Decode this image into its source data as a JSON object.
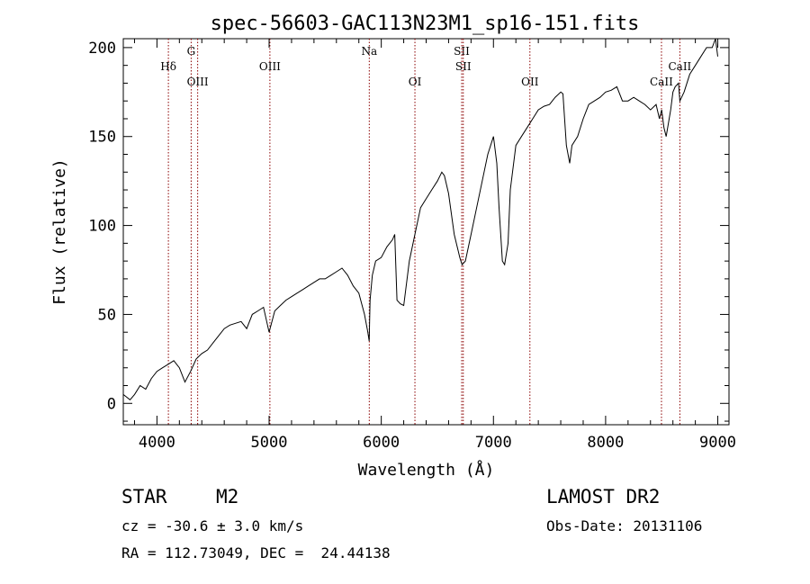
{
  "chart_data": {
    "type": "line",
    "title": "spec-56603-GAC113N23M1_sp16-151.fits",
    "xlabel": "Wavelength (Å)",
    "ylabel": "Flux (relative)",
    "xlim": [
      3700,
      9100
    ],
    "ylim": [
      -12,
      205
    ],
    "x_ticks": [
      4000,
      5000,
      6000,
      7000,
      8000,
      9000
    ],
    "x_tick_labels": [
      "4000",
      "5000",
      "6000",
      "7000",
      "8000",
      "9000"
    ],
    "y_ticks": [
      0,
      50,
      100,
      150,
      200
    ],
    "y_tick_labels": [
      "0",
      "50",
      "100",
      "150",
      "200"
    ],
    "series": [
      {
        "color": "#000000",
        "x": [
          3700,
          3760,
          3800,
          3850,
          3900,
          3950,
          4000,
          4050,
          4100,
          4150,
          4200,
          4250,
          4300,
          4350,
          4400,
          4450,
          4500,
          4550,
          4600,
          4650,
          4700,
          4750,
          4800,
          4850,
          4900,
          4950,
          5000,
          5050,
          5100,
          5150,
          5200,
          5250,
          5300,
          5350,
          5400,
          5450,
          5500,
          5550,
          5600,
          5650,
          5700,
          5750,
          5800,
          5850,
          5880,
          5892,
          5900,
          5920,
          5950,
          6000,
          6050,
          6100,
          6120,
          6140,
          6170,
          6200,
          6250,
          6300,
          6350,
          6400,
          6450,
          6500,
          6540,
          6563,
          6600,
          6650,
          6700,
          6720,
          6750,
          6800,
          6850,
          6900,
          6950,
          7000,
          7030,
          7050,
          7080,
          7100,
          7130,
          7150,
          7200,
          7250,
          7300,
          7350,
          7400,
          7450,
          7500,
          7550,
          7600,
          7620,
          7650,
          7680,
          7700,
          7750,
          7800,
          7850,
          7900,
          7950,
          8000,
          8050,
          8100,
          8150,
          8200,
          8250,
          8300,
          8350,
          8400,
          8450,
          8480,
          8500,
          8520,
          8540,
          8580,
          8600,
          8620,
          8650,
          8662,
          8700,
          8750,
          8800,
          8850,
          8900,
          8950,
          8980,
          9000
        ],
        "y": [
          5,
          2,
          5,
          10,
          8,
          14,
          18,
          20,
          22,
          24,
          20,
          12,
          18,
          25,
          28,
          30,
          34,
          38,
          42,
          44,
          45,
          46,
          42,
          50,
          52,
          54,
          40,
          52,
          55,
          58,
          60,
          62,
          64,
          66,
          68,
          70,
          70,
          72,
          74,
          76,
          72,
          66,
          62,
          50,
          40,
          35,
          58,
          72,
          80,
          82,
          88,
          92,
          95,
          58,
          56,
          55,
          80,
          95,
          110,
          115,
          120,
          125,
          130,
          128,
          118,
          95,
          82,
          78,
          80,
          95,
          110,
          125,
          140,
          150,
          135,
          110,
          80,
          78,
          90,
          120,
          145,
          150,
          155,
          160,
          165,
          167,
          168,
          172,
          175,
          174,
          145,
          135,
          145,
          150,
          160,
          168,
          170,
          172,
          175,
          176,
          178,
          170,
          170,
          172,
          170,
          168,
          165,
          168,
          160,
          165,
          155,
          150,
          165,
          175,
          178,
          180,
          170,
          175,
          185,
          190,
          195,
          200,
          200,
          205,
          195
        ]
      }
    ],
    "line_markers": [
      {
        "label": "Hδ",
        "x": 4102,
        "row": 1
      },
      {
        "label": "G",
        "x": 4305,
        "row": 0
      },
      {
        "label": "OIII",
        "x": 4363,
        "row": 2
      },
      {
        "label": "OIII",
        "x": 5007,
        "row": 1
      },
      {
        "label": "Na",
        "x": 5893,
        "row": 0
      },
      {
        "label": "OI",
        "x": 6300,
        "row": 2
      },
      {
        "label": "SII",
        "x": 6717,
        "row": 0
      },
      {
        "label": "SII",
        "x": 6731,
        "row": 1
      },
      {
        "label": "OII",
        "x": 7325,
        "row": 2
      },
      {
        "label": "CaII",
        "x": 8498,
        "row": 2
      },
      {
        "label": "CaII",
        "x": 8662,
        "row": 1
      }
    ],
    "marker_color": "#8b0000"
  },
  "info": {
    "object_class": "STAR",
    "subclass": "M2",
    "survey": "LAMOST DR2",
    "cz": "cz = -30.6 ± 3.0 km/s",
    "obs_date": "Obs-Date: 20131106",
    "coords": "RA = 112.73049, DEC =  24.44138"
  }
}
